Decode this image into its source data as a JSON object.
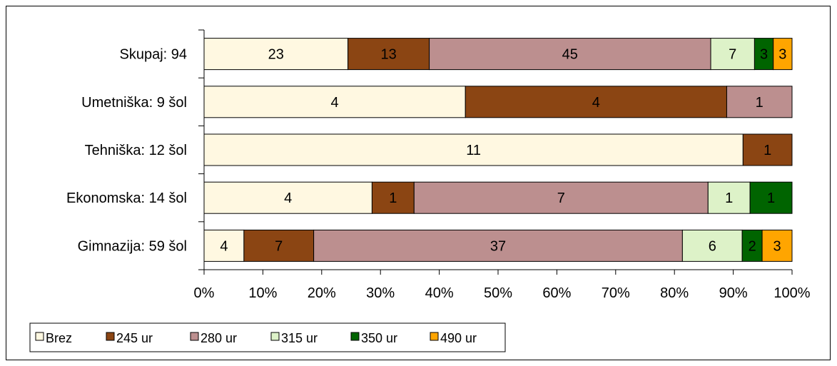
{
  "chart_data": {
    "type": "bar",
    "orientation": "horizontal",
    "stacked": "percent",
    "title": "",
    "xlabel": "",
    "ylabel": "",
    "xlim": [
      0,
      100
    ],
    "x_ticks": [
      "0%",
      "10%",
      "20%",
      "30%",
      "40%",
      "50%",
      "60%",
      "70%",
      "80%",
      "90%",
      "100%"
    ],
    "categories": [
      "Skupaj: 94",
      "Umetniška: 9 šol",
      "Tehniška: 12 šol",
      "Ekonomska: 14 šol",
      "Gimnazija: 59 šol"
    ],
    "series": [
      {
        "name": "Brez",
        "color": "#FFF8E1",
        "values": [
          23,
          4,
          11,
          4,
          4
        ]
      },
      {
        "name": "245 ur",
        "color": "#8B4513",
        "values": [
          13,
          4,
          1,
          1,
          7
        ]
      },
      {
        "name": "280 ur",
        "color": "#BC8F8F",
        "values": [
          45,
          1,
          0,
          7,
          37
        ]
      },
      {
        "name": "315 ur",
        "color": "#DDF2C8",
        "values": [
          7,
          0,
          0,
          1,
          6
        ]
      },
      {
        "name": "350 ur",
        "color": "#006400",
        "values": [
          3,
          0,
          0,
          1,
          2
        ]
      },
      {
        "name": "490 ur",
        "color": "#FFA500",
        "values": [
          3,
          0,
          0,
          0,
          3
        ]
      }
    ],
    "legend_position": "bottom-left",
    "grid": false
  }
}
